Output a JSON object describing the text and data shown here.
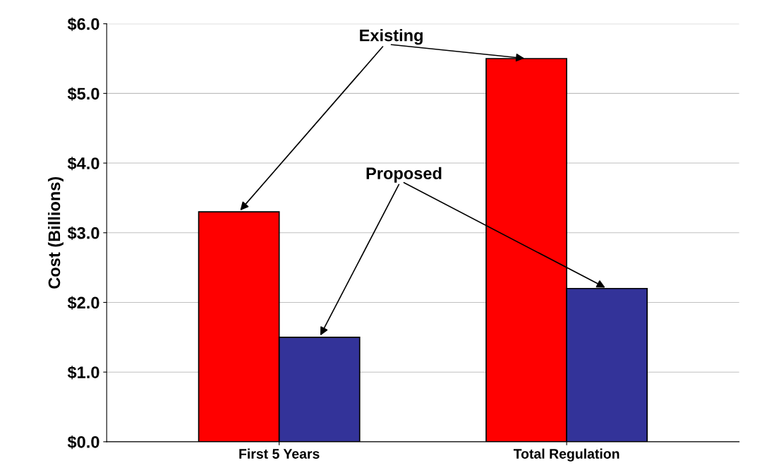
{
  "chart_data": {
    "type": "bar",
    "ylabel": "Cost (Billions)",
    "categories": [
      "First 5 Years",
      "Total Regulation"
    ],
    "series": [
      {
        "name": "Existing",
        "color": "#ff0000",
        "values": [
          3.3,
          5.5
        ]
      },
      {
        "name": "Proposed",
        "color": "#333399",
        "values": [
          1.5,
          2.2
        ]
      }
    ],
    "ylim": [
      0,
      6
    ],
    "yticks": [
      {
        "value": 0,
        "label": "$0.0"
      },
      {
        "value": 1,
        "label": "$1.0"
      },
      {
        "value": 2,
        "label": "$2.0"
      },
      {
        "value": 3,
        "label": "$3.0"
      },
      {
        "value": 4,
        "label": "$4.0"
      },
      {
        "value": 5,
        "label": "$5.0"
      },
      {
        "value": 6,
        "label": "$6.0"
      }
    ],
    "grid": "y",
    "legend": false
  }
}
